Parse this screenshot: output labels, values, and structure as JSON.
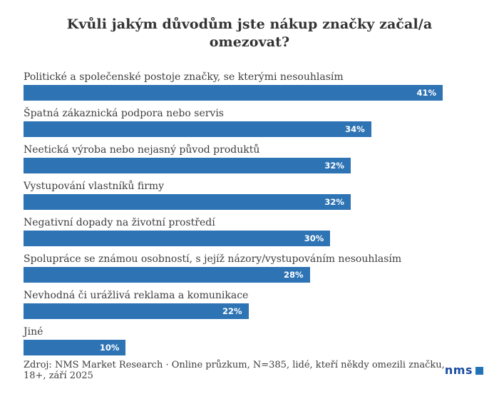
{
  "chart_data": {
    "type": "bar",
    "orientation": "horizontal",
    "title": "Kvůli jakým důvodům jste nákup značky začal/a omezovat?",
    "categories": [
      "Politické a společenské postoje značky, se kterými nesouhlasím",
      "Špatná zákaznická podpora nebo servis",
      "Neetická výroba nebo nejasný původ produktů",
      "Vystupování vlastníků firmy",
      "Negativní dopady na životní prostředí",
      "Spolupráce se známou osobností, s jejíž názory/vystupováním nesouhlasím",
      "Nevhodná či urážlivá reklama a komunikace",
      "Jiné"
    ],
    "values": [
      41,
      34,
      32,
      32,
      30,
      28,
      22,
      10
    ],
    "value_suffix": "%",
    "xlim": [
      0,
      41
    ],
    "grid": false,
    "legend": "none",
    "bar_color": "#2e74b5",
    "value_label_color": "#ffffff"
  },
  "footer": {
    "source": "Zdroj: NMS Market Research · Online průzkum, N=385, lidé, kteří někdy omezili značku, 18+, září 2025",
    "logo_text": "nms",
    "logo_text_color": "#1b4da0",
    "logo_square_color": "#2173b8"
  }
}
